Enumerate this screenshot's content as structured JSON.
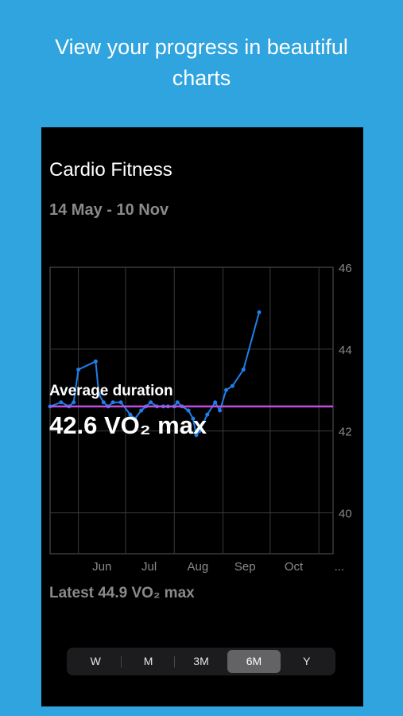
{
  "promo": {
    "headline_line1": "View your progress in  beautiful",
    "headline_line2": "charts"
  },
  "screen": {
    "title": "Cardio Fitness",
    "date_range": "14 May - 10 Nov",
    "average_label": "Average duration",
    "average_value": "42.6 VO₂ max",
    "latest": "Latest 44.9 VO₂ max"
  },
  "segments": [
    {
      "label": "W",
      "active": false
    },
    {
      "label": "M",
      "active": false
    },
    {
      "label": "3M",
      "active": false
    },
    {
      "label": "6M",
      "active": true
    },
    {
      "label": "Y",
      "active": false
    }
  ],
  "colors": {
    "background": "#2FA4DE",
    "line": "#1E7FE8",
    "average_line": "#C04DE0"
  },
  "chart_data": {
    "type": "line",
    "ylim": [
      39,
      46
    ],
    "yticks": [
      40,
      42,
      44,
      46
    ],
    "xtick_labels": [
      "Jun",
      "Jul",
      "Aug",
      "Sep",
      "Oct",
      "..."
    ],
    "average": 42.6,
    "grid": true,
    "series": [
      {
        "x": [
          "2023-05-14",
          "2023-05-21",
          "2023-05-26",
          "2023-05-29",
          "2023-06-01",
          "2023-06-12",
          "2023-06-14",
          "2023-06-17",
          "2023-06-20",
          "2023-06-23",
          "2023-06-28",
          "2023-07-04",
          "2023-07-07",
          "2023-07-11",
          "2023-07-14",
          "2023-07-17",
          "2023-07-21",
          "2023-07-25",
          "2023-07-28",
          "2023-08-01",
          "2023-08-03",
          "2023-08-06",
          "2023-08-10",
          "2023-08-13",
          "2023-08-15",
          "2023-08-17",
          "2023-08-22",
          "2023-08-27",
          "2023-08-30",
          "2023-09-03",
          "2023-09-07",
          "2023-09-14",
          "2023-09-24"
        ],
        "values": [
          42.6,
          42.7,
          42.6,
          42.7,
          43.5,
          43.7,
          42.9,
          42.7,
          42.6,
          42.7,
          42.7,
          42.4,
          42.3,
          42.5,
          42.6,
          42.7,
          42.6,
          42.6,
          42.6,
          42.6,
          42.7,
          42.6,
          42.5,
          42.3,
          41.9,
          42.0,
          42.4,
          42.7,
          42.5,
          43.0,
          43.1,
          43.5,
          44.9
        ]
      }
    ]
  }
}
